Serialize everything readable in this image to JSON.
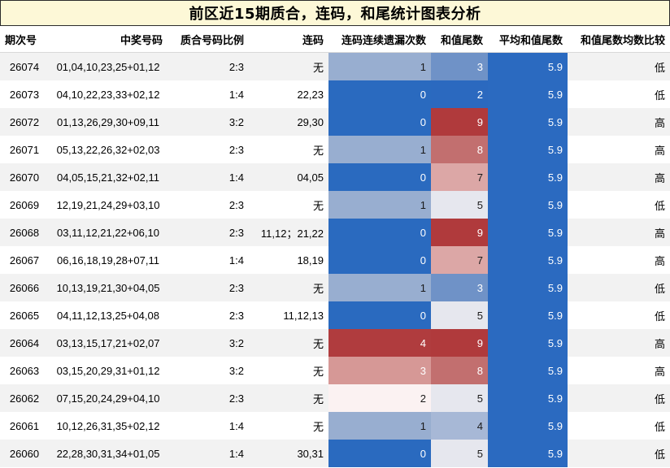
{
  "title": "前区近15期质合，连码，和尾统计图表分析",
  "headers": {
    "issue": "期次号",
    "numbers": "中奖号码",
    "ratio": "质合号码比例",
    "consecutive": "连码",
    "miss": "连码连续遗漏次数",
    "tail": "和值尾数",
    "avg": "平均和值尾数",
    "compare": "和值尾数均数比较"
  },
  "rows": [
    {
      "issue": "26074",
      "numbers": "01,04,10,23,25+01,12",
      "ratio": "2:3",
      "consecutive": "无",
      "miss": "1",
      "tail": "3",
      "avg": "5.9",
      "compare": "低"
    },
    {
      "issue": "26073",
      "numbers": "04,10,22,23,33+02,12",
      "ratio": "1:4",
      "consecutive": "22,23",
      "miss": "0",
      "tail": "2",
      "avg": "5.9",
      "compare": "低"
    },
    {
      "issue": "26072",
      "numbers": "01,13,26,29,30+09,11",
      "ratio": "3:2",
      "consecutive": "29,30",
      "miss": "0",
      "tail": "9",
      "avg": "5.9",
      "compare": "高"
    },
    {
      "issue": "26071",
      "numbers": "05,13,22,26,32+02,03",
      "ratio": "2:3",
      "consecutive": "无",
      "miss": "1",
      "tail": "8",
      "avg": "5.9",
      "compare": "高"
    },
    {
      "issue": "26070",
      "numbers": "04,05,15,21,32+02,11",
      "ratio": "1:4",
      "consecutive": "04,05",
      "miss": "0",
      "tail": "7",
      "avg": "5.9",
      "compare": "高"
    },
    {
      "issue": "26069",
      "numbers": "12,19,21,24,29+03,10",
      "ratio": "2:3",
      "consecutive": "无",
      "miss": "1",
      "tail": "5",
      "avg": "5.9",
      "compare": "低"
    },
    {
      "issue": "26068",
      "numbers": "03,11,12,21,22+06,10",
      "ratio": "2:3",
      "consecutive": "11,12；21,22",
      "miss": "0",
      "tail": "9",
      "avg": "5.9",
      "compare": "高"
    },
    {
      "issue": "26067",
      "numbers": "06,16,18,19,28+07,11",
      "ratio": "1:4",
      "consecutive": "18,19",
      "miss": "0",
      "tail": "7",
      "avg": "5.9",
      "compare": "高"
    },
    {
      "issue": "26066",
      "numbers": "10,13,19,21,30+04,05",
      "ratio": "2:3",
      "consecutive": "无",
      "miss": "1",
      "tail": "3",
      "avg": "5.9",
      "compare": "低"
    },
    {
      "issue": "26065",
      "numbers": "04,11,12,13,25+04,08",
      "ratio": "2:3",
      "consecutive": "11,12,13",
      "miss": "0",
      "tail": "5",
      "avg": "5.9",
      "compare": "低"
    },
    {
      "issue": "26064",
      "numbers": "03,13,15,17,21+02,07",
      "ratio": "3:2",
      "consecutive": "无",
      "miss": "4",
      "tail": "9",
      "avg": "5.9",
      "compare": "高"
    },
    {
      "issue": "26063",
      "numbers": "03,15,20,29,31+01,12",
      "ratio": "3:2",
      "consecutive": "无",
      "miss": "3",
      "tail": "8",
      "avg": "5.9",
      "compare": "高"
    },
    {
      "issue": "26062",
      "numbers": "07,15,20,24,29+04,10",
      "ratio": "2:3",
      "consecutive": "无",
      "miss": "2",
      "tail": "5",
      "avg": "5.9",
      "compare": "低"
    },
    {
      "issue": "26061",
      "numbers": "10,12,26,31,35+02,12",
      "ratio": "1:4",
      "consecutive": "无",
      "miss": "1",
      "tail": "4",
      "avg": "5.9",
      "compare": "低"
    },
    {
      "issue": "26060",
      "numbers": "22,28,30,31,34+01,05",
      "ratio": "1:4",
      "consecutive": "30,31",
      "miss": "0",
      "tail": "5",
      "avg": "5.9",
      "compare": "低"
    }
  ],
  "colors": {
    "title_bg": "#fdf8d7",
    "alt_row": "#f2f2f2",
    "miss": {
      "0": "#2a6abf",
      "1": "#98aed0",
      "2": "#fbf2f2",
      "3": "#d69896",
      "4": "#b03c3e"
    },
    "tail": {
      "2": "#2b69bf",
      "3": "#6f92c7",
      "4": "#a7b8d6",
      "5": "#e6e7ee",
      "7": "#dca7a6",
      "8": "#c26f6f",
      "9": "#b03a3c"
    },
    "avg": "#2b6ac0"
  }
}
